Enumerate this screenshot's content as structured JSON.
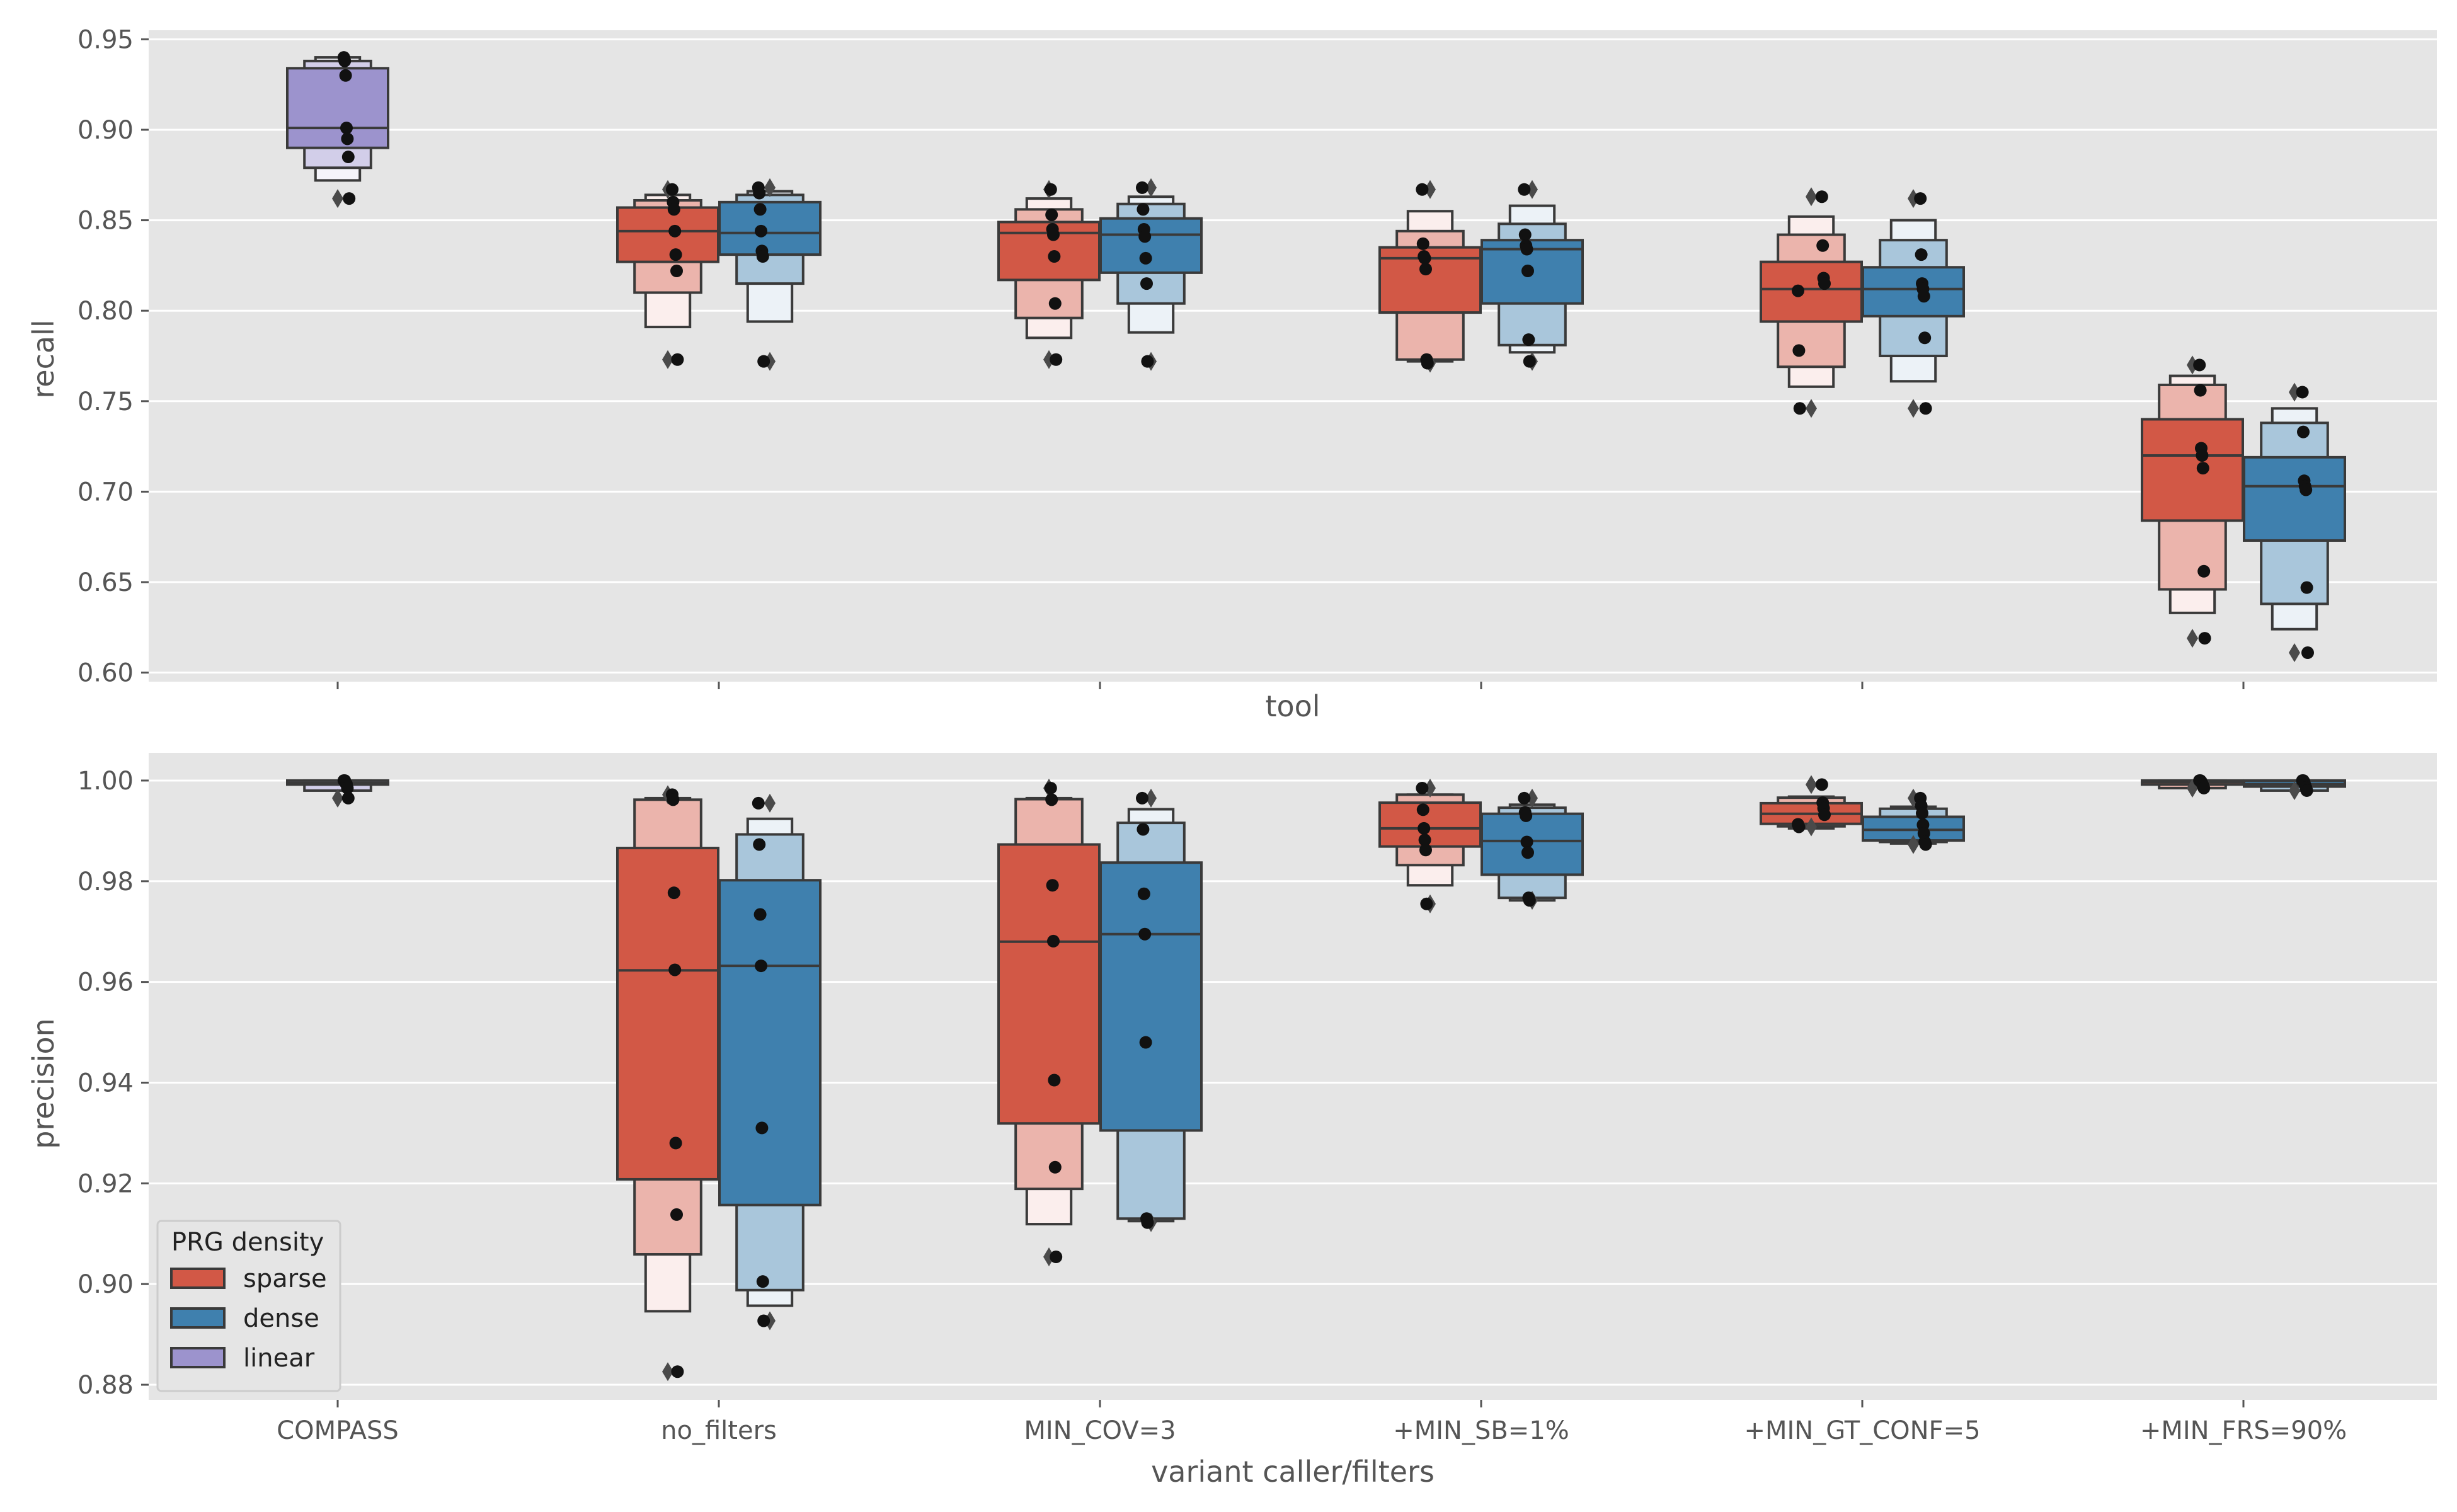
{
  "colors": {
    "background": "#e5e5e5",
    "grid": "#ffffff",
    "sparse": "#d25846",
    "dense": "#3f80ae",
    "linear": "#9c93cd",
    "edge": "#3a3a3a",
    "point": "#111111",
    "text": "#555555"
  },
  "chart_data": [
    {
      "type": "boxen",
      "panel": "top",
      "ylabel": "recall",
      "xlabel": "tool",
      "ylim": [
        0.595,
        0.955
      ],
      "yticks": [
        "0.60",
        "0.65",
        "0.70",
        "0.75",
        "0.80",
        "0.85",
        "0.90",
        "0.95"
      ],
      "grid": true,
      "categories": [
        "COMPASS",
        "no_filters",
        "MIN_COV=3",
        "+MIN_SB=1%",
        "+MIN_GT_CONF=5",
        "+MIN_FRS=90%"
      ],
      "series": [
        {
          "name": "linear",
          "groups": [
            {
              "category": "COMPASS",
              "median": 0.901,
              "boxes": [
                [
                  0.89,
                  0.934
                ],
                [
                  0.879,
                  0.938
                ],
                [
                  0.872,
                  0.94
                ]
              ],
              "points": [
                0.94,
                0.938,
                0.93,
                0.901,
                0.895,
                0.885,
                0.862
              ],
              "outliers": [
                0.862
              ]
            }
          ]
        },
        {
          "name": "sparse",
          "groups": [
            {
              "category": "no_filters",
              "median": 0.844,
              "boxes": [
                [
                  0.827,
                  0.857
                ],
                [
                  0.81,
                  0.861
                ],
                [
                  0.791,
                  0.864
                ]
              ],
              "points": [
                0.867,
                0.86,
                0.856,
                0.844,
                0.831,
                0.822,
                0.773
              ],
              "outliers": [
                0.867,
                0.773
              ]
            },
            {
              "category": "MIN_COV=3",
              "median": 0.843,
              "boxes": [
                [
                  0.817,
                  0.849
                ],
                [
                  0.796,
                  0.856
                ],
                [
                  0.785,
                  0.862
                ]
              ],
              "points": [
                0.867,
                0.853,
                0.845,
                0.842,
                0.83,
                0.804,
                0.773
              ],
              "outliers": [
                0.867,
                0.773
              ]
            },
            {
              "category": "+MIN_SB=1%",
              "median": 0.829,
              "boxes": [
                [
                  0.799,
                  0.835
                ],
                [
                  0.773,
                  0.844
                ],
                [
                  0.772,
                  0.855
                ]
              ],
              "points": [
                0.867,
                0.837,
                0.83,
                0.829,
                0.823,
                0.773,
                0.771
              ],
              "outliers": [
                0.867,
                0.771
              ]
            },
            {
              "category": "+MIN_GT_CONF=5",
              "median": 0.812,
              "boxes": [
                [
                  0.794,
                  0.827
                ],
                [
                  0.769,
                  0.842
                ],
                [
                  0.758,
                  0.852
                ]
              ],
              "points": [
                0.863,
                0.836,
                0.818,
                0.815,
                0.811,
                0.778,
                0.746
              ],
              "outliers": [
                0.863,
                0.746
              ]
            },
            {
              "category": "+MIN_FRS=90%",
              "median": 0.72,
              "boxes": [
                [
                  0.684,
                  0.74
                ],
                [
                  0.646,
                  0.759
                ],
                [
                  0.633,
                  0.764
                ]
              ],
              "points": [
                0.77,
                0.756,
                0.724,
                0.72,
                0.713,
                0.656,
                0.619
              ],
              "outliers": [
                0.77,
                0.619
              ]
            }
          ]
        },
        {
          "name": "dense",
          "groups": [
            {
              "category": "no_filters",
              "median": 0.843,
              "boxes": [
                [
                  0.831,
                  0.86
                ],
                [
                  0.815,
                  0.864
                ],
                [
                  0.794,
                  0.866
                ]
              ],
              "points": [
                0.868,
                0.865,
                0.856,
                0.844,
                0.833,
                0.83,
                0.772
              ],
              "outliers": [
                0.868,
                0.772
              ]
            },
            {
              "category": "MIN_COV=3",
              "median": 0.842,
              "boxes": [
                [
                  0.821,
                  0.851
                ],
                [
                  0.804,
                  0.859
                ],
                [
                  0.788,
                  0.863
                ]
              ],
              "points": [
                0.868,
                0.856,
                0.845,
                0.841,
                0.829,
                0.815,
                0.772
              ],
              "outliers": [
                0.868,
                0.772
              ]
            },
            {
              "category": "+MIN_SB=1%",
              "median": 0.834,
              "boxes": [
                [
                  0.804,
                  0.839
                ],
                [
                  0.781,
                  0.848
                ],
                [
                  0.777,
                  0.858
                ]
              ],
              "points": [
                0.867,
                0.842,
                0.836,
                0.834,
                0.822,
                0.784,
                0.772
              ],
              "outliers": [
                0.867,
                0.772
              ]
            },
            {
              "category": "+MIN_GT_CONF=5",
              "median": 0.812,
              "boxes": [
                [
                  0.797,
                  0.824
                ],
                [
                  0.775,
                  0.839
                ],
                [
                  0.761,
                  0.85
                ]
              ],
              "points": [
                0.862,
                0.831,
                0.815,
                0.812,
                0.808,
                0.785,
                0.746
              ],
              "outliers": [
                0.862,
                0.746
              ]
            },
            {
              "category": "+MIN_FRS=90%",
              "median": 0.703,
              "boxes": [
                [
                  0.673,
                  0.719
                ],
                [
                  0.638,
                  0.738
                ],
                [
                  0.624,
                  0.746
                ]
              ],
              "points": [
                0.755,
                0.733,
                0.706,
                0.703,
                0.701,
                0.647,
                0.611
              ],
              "outliers": [
                0.755,
                0.611
              ]
            }
          ]
        }
      ]
    },
    {
      "type": "boxen",
      "panel": "bottom",
      "ylabel": "precision",
      "xlabel": "variant caller/filters",
      "ylim": [
        0.877,
        1.0055
      ],
      "yticks": [
        "0.88",
        "0.90",
        "0.92",
        "0.94",
        "0.96",
        "0.98",
        "1.00"
      ],
      "grid": true,
      "categories": [
        "COMPASS",
        "no_filters",
        "MIN_COV=3",
        "+MIN_SB=1%",
        "+MIN_GT_CONF=5",
        "+MIN_FRS=90%"
      ],
      "series": [
        {
          "name": "linear",
          "groups": [
            {
              "category": "COMPASS",
              "median": 0.9995,
              "boxes": [
                [
                  0.9992,
                  1.0
                ],
                [
                  0.998,
                  1.0
                ]
              ],
              "points": [
                1.0,
                1.0,
                0.9995,
                0.9993,
                0.9985,
                0.9965
              ],
              "outliers": [
                0.9965
              ]
            }
          ]
        },
        {
          "name": "sparse",
          "groups": [
            {
              "category": "no_filters",
              "median": 0.9623,
              "boxes": [
                [
                  0.9208,
                  0.9866
                ],
                [
                  0.9059,
                  0.9962
                ],
                [
                  0.8946,
                  0.9965
                ]
              ],
              "points": [
                0.9972,
                0.9962,
                0.9777,
                0.9624,
                0.928,
                0.9138,
                0.8826
              ],
              "outliers": [
                0.9972,
                0.8826
              ]
            },
            {
              "category": "MIN_COV=3",
              "median": 0.968,
              "boxes": [
                [
                  0.9319,
                  0.9873
                ],
                [
                  0.9189,
                  0.9963
                ],
                [
                  0.9119,
                  0.9965
                ]
              ],
              "points": [
                0.9985,
                0.9962,
                0.9792,
                0.9681,
                0.9405,
                0.9232,
                0.9054
              ],
              "outliers": [
                0.9985,
                0.9054
              ]
            },
            {
              "category": "+MIN_SB=1%",
              "median": 0.9905,
              "boxes": [
                [
                  0.9869,
                  0.9956
                ],
                [
                  0.9832,
                  0.9972
                ],
                [
                  0.9792,
                  0.9972
                ]
              ],
              "points": [
                0.9985,
                0.9942,
                0.9905,
                0.9882,
                0.9862,
                0.9755
              ],
              "outliers": [
                0.9985,
                0.9755
              ]
            },
            {
              "category": "+MIN_GT_CONF=5",
              "median": 0.9934,
              "boxes": [
                [
                  0.9914,
                  0.9955
                ],
                [
                  0.9909,
                  0.9966
                ],
                [
                  0.9905,
                  0.9968
                ]
              ],
              "points": [
                0.9992,
                0.9956,
                0.9945,
                0.9932,
                0.9913,
                0.9908
              ],
              "outliers": [
                0.9992,
                0.9908
              ]
            },
            {
              "category": "+MIN_FRS=90%",
              "median": 0.9997,
              "boxes": [
                [
                  0.9992,
                  1.0
                ],
                [
                  0.9985,
                  1.0
                ]
              ],
              "points": [
                1.0,
                1.0,
                0.9998,
                0.9994,
                0.999,
                0.9985
              ],
              "outliers": [
                0.9985
              ]
            }
          ]
        },
        {
          "name": "dense",
          "groups": [
            {
              "category": "no_filters",
              "median": 0.9632,
              "boxes": [
                [
                  0.9157,
                  0.9802
                ],
                [
                  0.8988,
                  0.9893
                ],
                [
                  0.8957,
                  0.9924
                ]
              ],
              "points": [
                0.9955,
                0.9873,
                0.9734,
                0.9632,
                0.931,
                0.9005,
                0.8927
              ],
              "outliers": [
                0.9955,
                0.8927
              ]
            },
            {
              "category": "MIN_COV=3",
              "median": 0.9695,
              "boxes": [
                [
                  0.9305,
                  0.9837
                ],
                [
                  0.913,
                  0.9916
                ],
                [
                  0.9125,
                  0.9943
                ]
              ],
              "points": [
                0.9965,
                0.9903,
                0.9775,
                0.9695,
                0.948,
                0.913,
                0.9122
              ],
              "outliers": [
                0.9965,
                0.9122
              ]
            },
            {
              "category": "+MIN_SB=1%",
              "median": 0.988,
              "boxes": [
                [
                  0.9813,
                  0.9934
                ],
                [
                  0.9767,
                  0.9946
                ],
                [
                  0.9762,
                  0.9952
                ]
              ],
              "points": [
                0.9965,
                0.9937,
                0.993,
                0.9878,
                0.9857,
                0.9767,
                0.9762
              ],
              "outliers": [
                0.9965,
                0.9762
              ]
            },
            {
              "category": "+MIN_GT_CONF=5",
              "median": 0.9902,
              "boxes": [
                [
                  0.9881,
                  0.9928
                ],
                [
                  0.9878,
                  0.9944
                ],
                [
                  0.9875,
                  0.9948
                ]
              ],
              "points": [
                0.9965,
                0.995,
                0.9935,
                0.9912,
                0.9895,
                0.9878,
                0.9873
              ],
              "outliers": [
                0.9965,
                0.9873
              ]
            },
            {
              "category": "+MIN_FRS=90%",
              "median": 0.9993,
              "boxes": [
                [
                  0.9988,
                  1.0
                ],
                [
                  0.998,
                  1.0
                ]
              ],
              "points": [
                1.0,
                1.0,
                0.9997,
                0.9991,
                0.9986,
                0.998
              ],
              "outliers": [
                0.998
              ]
            }
          ]
        }
      ]
    }
  ],
  "legend": {
    "title": "PRG density",
    "location": "lower-left of bottom panel",
    "items": [
      {
        "label": "sparse",
        "color": "#d25846"
      },
      {
        "label": "dense",
        "color": "#3f80ae"
      },
      {
        "label": "linear",
        "color": "#9c93cd"
      }
    ]
  }
}
